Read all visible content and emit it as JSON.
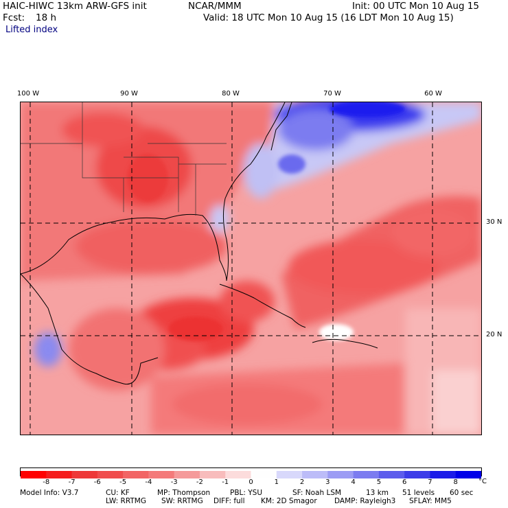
{
  "header": {
    "model_title": "HAIC-HIWC 13km ARW-GFS init",
    "org": "NCAR/MMM",
    "init_time": "Init: 00 UTC Mon 10 Aug 15",
    "fcst_label": "Fcst:",
    "fcst_hours": "18 h",
    "valid_time": "Valid: 18 UTC Mon 10 Aug 15 (16 LDT Mon 10 Aug 15)",
    "field_name": "Lifted index"
  },
  "map": {
    "longitude_labels": [
      "100 W",
      "90 W",
      "80 W",
      "70 W",
      "60 W"
    ],
    "latitude_labels": [
      "30 N",
      "20 N"
    ],
    "colors": {
      "background_sea": "#f6a7a7",
      "land_pink": "#f58a8a",
      "strong_red": "#ee3434",
      "blue_positive": "#5a5aee",
      "deep_blue": "#1010ee"
    }
  },
  "colorbar": {
    "unit": "°C",
    "ticks": [
      "-8",
      "-7",
      "-6",
      "-5",
      "-4",
      "-3",
      "-2",
      "-1",
      "0",
      "1",
      "2",
      "3",
      "4",
      "5",
      "6",
      "7",
      "8"
    ],
    "colors": [
      "#ff0000",
      "#f51c1c",
      "#ee3838",
      "#f04c4c",
      "#f26464",
      "#f47a7a",
      "#f59a9a",
      "#f8bcbc",
      "#fcdcdc",
      "#fefefe",
      "#d8d8fb",
      "#bcbcf8",
      "#9c9cf4",
      "#7c7cf0",
      "#5c5cec",
      "#3c3ce8",
      "#1c1ce8",
      "#0000e8"
    ]
  },
  "model_info": {
    "line1": [
      "Model Info: V3.7",
      "CU: KF",
      "MP: Thompson",
      "PBL: YSU",
      "SF: Noah LSM",
      "13 km",
      "51 levels",
      "60 sec"
    ],
    "line2": [
      "LW: RRTMG",
      "SW: RRTMG",
      "DIFF: full",
      "KM: 2D Smagor",
      "DAMP: Rayleigh3",
      "SFLAY: MM5"
    ]
  }
}
